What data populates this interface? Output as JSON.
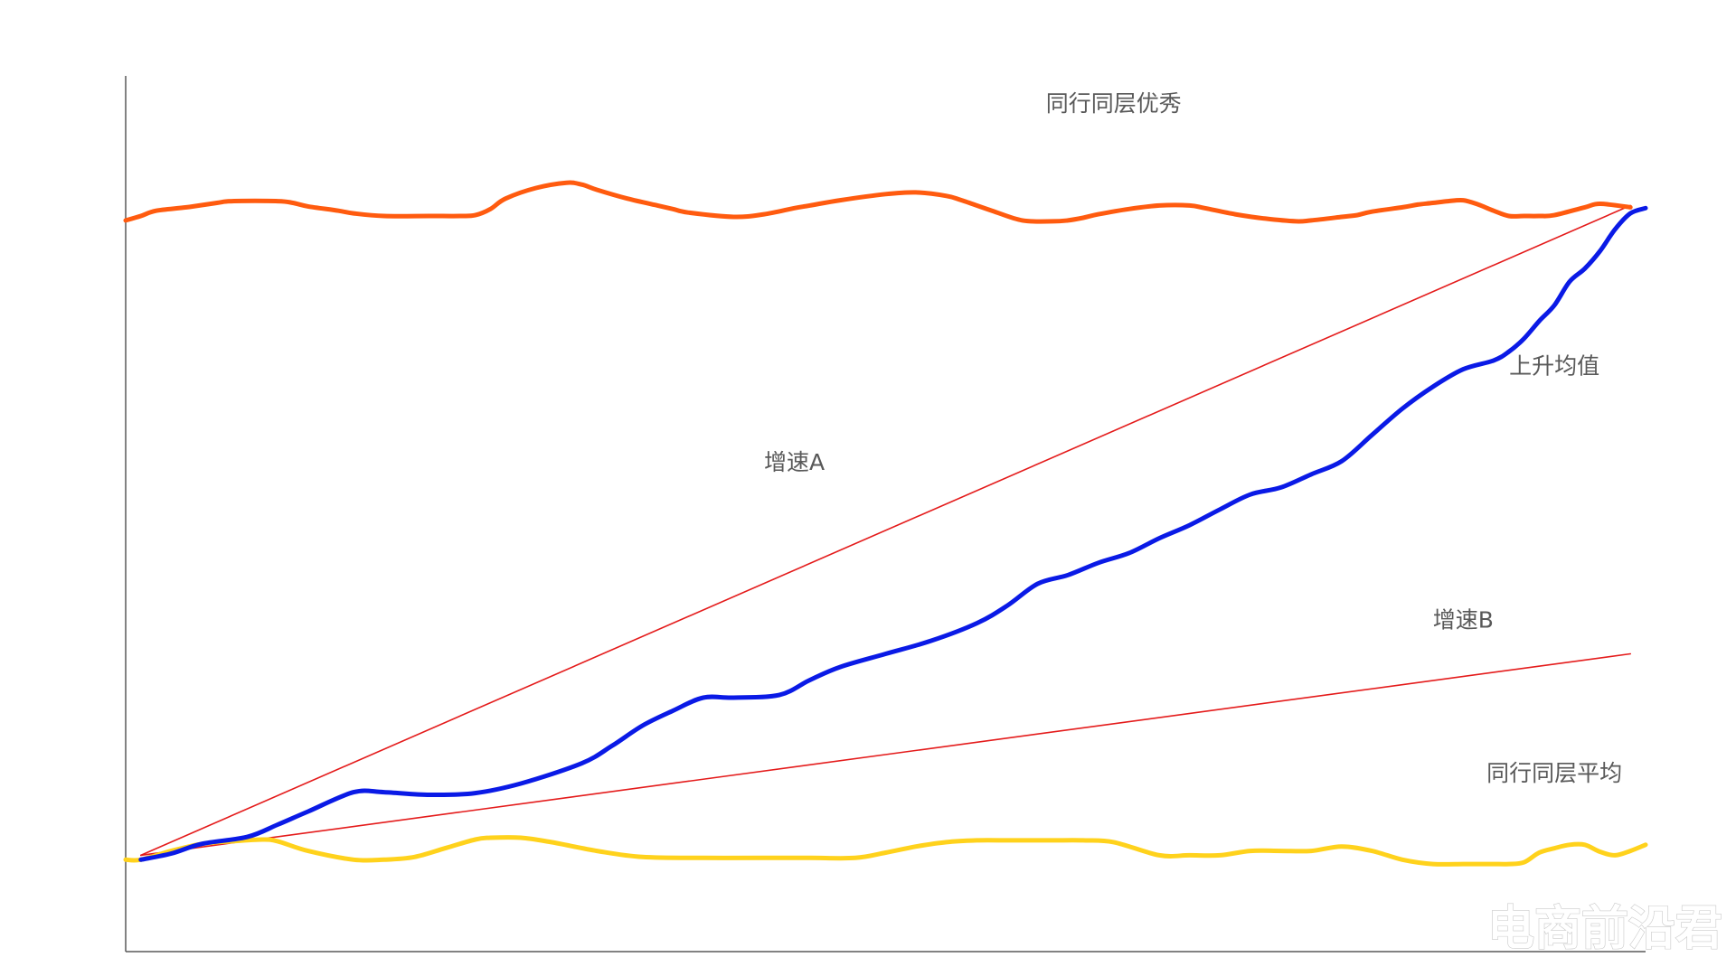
{
  "chart_data": {
    "type": "line",
    "title": "",
    "xlabel": "",
    "ylabel": "",
    "xlim": [
      0,
      100
    ],
    "ylim": [
      0,
      100
    ],
    "grid": false,
    "legend": "none",
    "series": [
      {
        "name": "同行同层优秀",
        "color": "#FF5B0F",
        "stroke": "thick",
        "x": [
          0,
          1,
          2,
          4,
          6,
          7,
          10,
          11,
          12,
          14,
          15,
          17,
          20,
          22,
          23,
          24,
          25,
          27,
          29,
          30,
          31,
          33,
          35,
          36,
          37,
          40,
          42,
          44,
          45,
          47,
          50,
          52,
          54,
          55,
          57,
          59,
          61,
          62,
          63,
          64,
          66,
          68,
          70,
          71,
          73,
          75,
          77,
          78,
          80,
          81,
          82,
          84,
          85,
          86,
          87,
          88,
          89,
          90,
          91,
          92,
          93,
          94,
          96,
          97,
          99
        ],
        "y": [
          83.5,
          84,
          84.6,
          85,
          85.5,
          85.7,
          85.7,
          85.5,
          85.1,
          84.6,
          84.3,
          84.0,
          84.0,
          84.0,
          84.1,
          84.8,
          86.0,
          87.2,
          87.8,
          87.6,
          87.0,
          86.0,
          85.2,
          84.8,
          84.4,
          83.9,
          84.2,
          84.9,
          85.2,
          85.8,
          86.5,
          86.7,
          86.3,
          85.8,
          84.6,
          83.5,
          83.4,
          83.5,
          83.8,
          84.2,
          84.8,
          85.2,
          85.2,
          84.9,
          84.2,
          83.7,
          83.4,
          83.5,
          83.9,
          84.1,
          84.5,
          85.0,
          85.3,
          85.5,
          85.7,
          85.8,
          85.3,
          84.6,
          84.0,
          84.0,
          84.0,
          84.1,
          85.0,
          85.4,
          85.0
        ]
      },
      {
        "name": "上升均值",
        "color": "#0A1AE6",
        "stroke": "thick",
        "x": [
          1,
          3,
          5,
          8,
          10,
          12,
          15,
          17,
          20,
          23,
          26,
          30,
          32,
          34,
          36,
          38,
          40,
          43,
          45,
          47,
          50,
          53,
          56,
          58,
          60,
          62,
          64,
          66,
          68,
          70,
          72,
          74,
          76,
          78,
          80,
          82,
          84,
          86,
          88,
          90,
          91,
          92,
          93,
          94,
          95,
          96,
          97,
          98,
          99,
          100
        ],
        "y": [
          10.5,
          11.2,
          12.3,
          13.1,
          14.5,
          16.0,
          18.2,
          18.2,
          17.9,
          18.1,
          19.2,
          21.5,
          23.5,
          25.8,
          27.5,
          29.0,
          29.0,
          29.3,
          31.0,
          32.5,
          34.0,
          35.5,
          37.5,
          39.5,
          42.0,
          43.0,
          44.4,
          45.5,
          47.2,
          48.7,
          50.5,
          52.2,
          53.0,
          54.5,
          56.0,
          59.0,
          62.0,
          64.5,
          66.5,
          67.5,
          68.5,
          70.0,
          72.0,
          73.8,
          76.5,
          78.0,
          80.0,
          82.5,
          84.3,
          84.9
        ]
      },
      {
        "name": "同行同层平均",
        "color": "#FFD21C",
        "stroke": "thick",
        "x": [
          0,
          1,
          3,
          5,
          7,
          9,
          10,
          12,
          15,
          17,
          19,
          21,
          23,
          24,
          26,
          28,
          31,
          34,
          38,
          42,
          45,
          48,
          50,
          52,
          54,
          56,
          58,
          59,
          61,
          63,
          65,
          68,
          70,
          72,
          74,
          76,
          78,
          80,
          82,
          84,
          86,
          88,
          89,
          90,
          91,
          92,
          93,
          94,
          95,
          96,
          97,
          98,
          99,
          100
        ],
        "y": [
          10.5,
          10.5,
          11.5,
          12.3,
          12.6,
          12.8,
          12.6,
          11.5,
          10.5,
          10.5,
          10.8,
          11.8,
          12.8,
          13.0,
          13.0,
          12.5,
          11.5,
          10.8,
          10.7,
          10.7,
          10.7,
          10.7,
          11.3,
          12.0,
          12.5,
          12.7,
          12.7,
          12.7,
          12.7,
          12.7,
          12.5,
          11.0,
          11.0,
          11.0,
          11.5,
          11.5,
          11.5,
          12.0,
          11.5,
          10.5,
          10.0,
          10.0,
          10.0,
          10.0,
          10.0,
          10.2,
          11.3,
          11.8,
          12.2,
          12.2,
          11.4,
          11.0,
          11.5,
          12.2
        ]
      },
      {
        "name": "增速A",
        "color": "#E41B1B",
        "stroke": "thin",
        "x": [
          1,
          99
        ],
        "y": [
          11,
          85.2
        ]
      },
      {
        "name": "增速B",
        "color": "#E41B1B",
        "stroke": "thin",
        "x": [
          1,
          99
        ],
        "y": [
          11,
          34
        ]
      }
    ],
    "annotations": [
      {
        "text": "同行同层优秀",
        "x": 65,
        "y": 96
      },
      {
        "text": "上升均值",
        "x": 94,
        "y": 66
      },
      {
        "text": "增速A",
        "x": 44,
        "y": 55
      },
      {
        "text": "增速B",
        "x": 88,
        "y": 37
      },
      {
        "text": "同行同层平均",
        "x": 94,
        "y": 19.5
      }
    ]
  },
  "watermark": {
    "text": "电商前沿君"
  }
}
